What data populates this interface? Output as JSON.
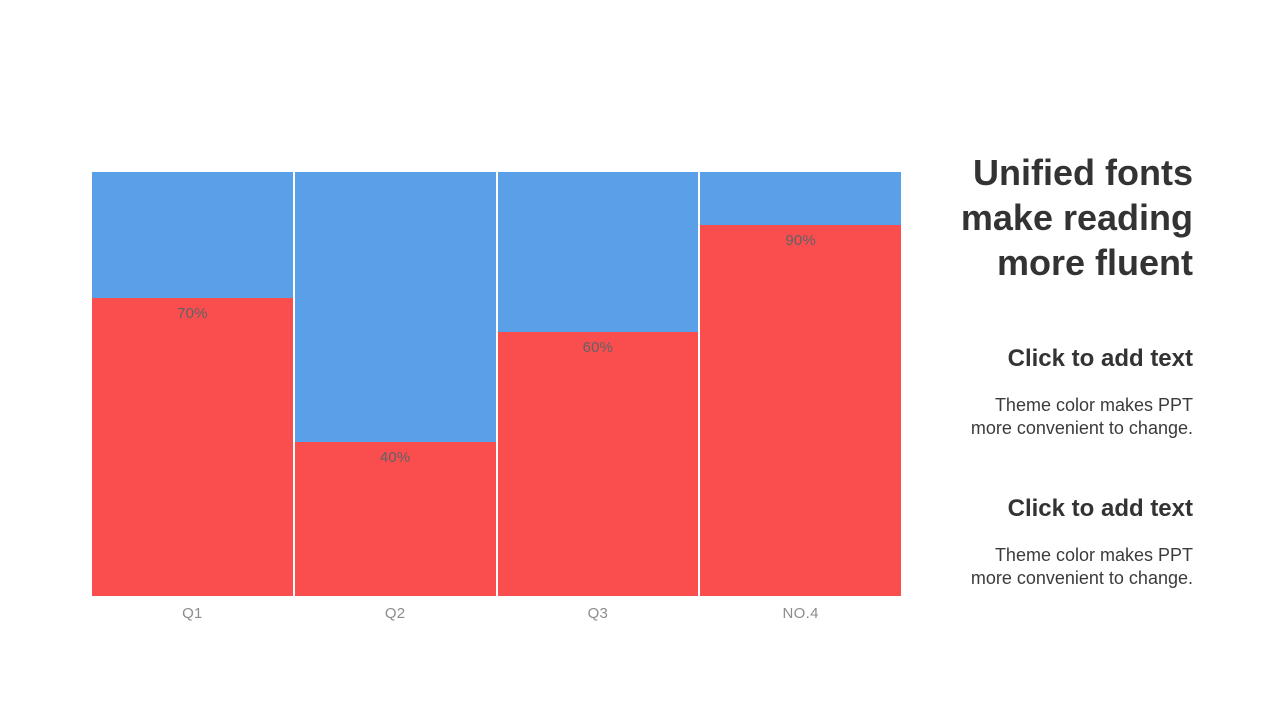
{
  "right_panel": {
    "title_lines": [
      "Unified fonts",
      "make reading",
      "more fluent"
    ],
    "sections": [
      {
        "heading": "Click to add text",
        "body_lines": [
          "Theme color makes PPT",
          "more convenient to change."
        ]
      },
      {
        "heading": "Click to add text",
        "body_lines": [
          "Theme color makes PPT",
          "more convenient to change."
        ]
      }
    ]
  },
  "chart_data": {
    "type": "bar",
    "subtype": "stacked-percentage-columns",
    "orientation": "vertical",
    "categories": [
      "Q1",
      "Q2",
      "Q3",
      "NO.4"
    ],
    "series": [
      {
        "name": "highlight-bottom",
        "color": "#FA4D4D",
        "values": [
          70,
          40,
          60,
          90
        ]
      },
      {
        "name": "base-top",
        "color": "#5AA0E8",
        "values": [
          30,
          60,
          40,
          10
        ]
      }
    ],
    "data_labels": [
      "70%",
      "40%",
      "60%",
      "90%"
    ],
    "render_red_fraction": [
      0.703,
      0.363,
      0.623,
      0.874
    ],
    "legend": "none",
    "axes_visible": false,
    "grid": false,
    "value_label_color": "#5E6369",
    "category_label_color": "#8C8C8C"
  },
  "colors": {
    "background": "#FFFFFF",
    "title_text": "#333333",
    "body_text": "#3B3B3B"
  }
}
